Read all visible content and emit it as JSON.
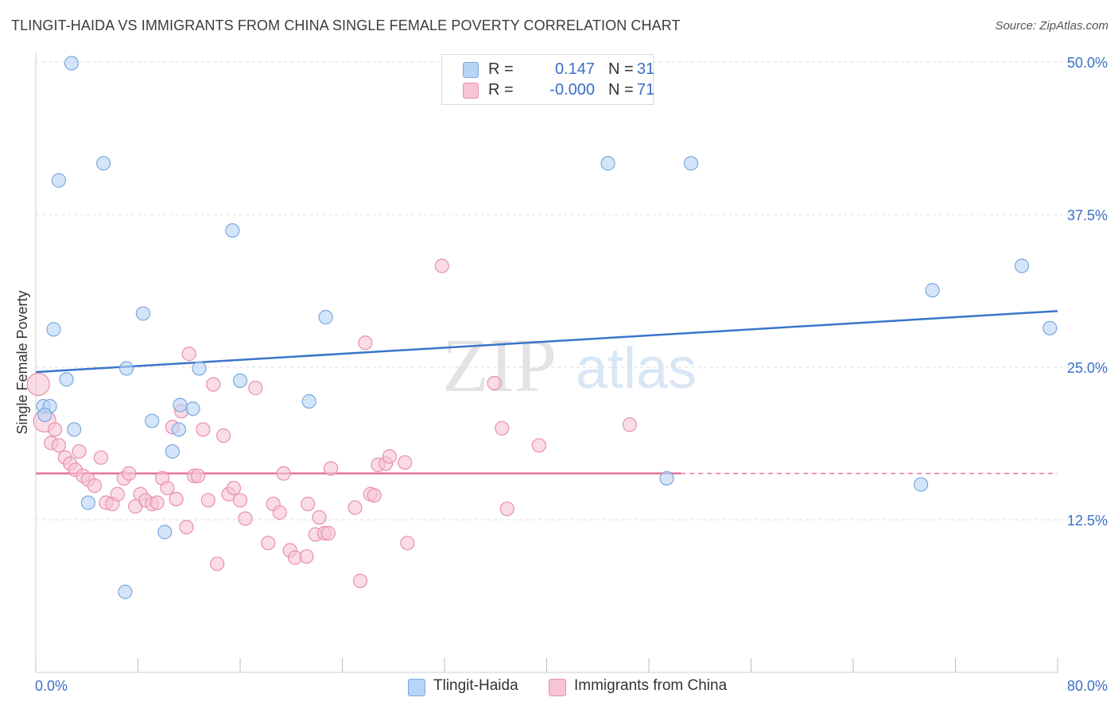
{
  "title": "TLINGIT-HAIDA VS IMMIGRANTS FROM CHINA SINGLE FEMALE POVERTY CORRELATION CHART",
  "source": "Source: ZipAtlas.com",
  "watermark": {
    "zip": "ZIP",
    "atlas": "atlas"
  },
  "legend": {
    "series1": {
      "r_label": "R =",
      "r_value": "0.147",
      "n_label": "N =",
      "n_value": "31"
    },
    "series2": {
      "r_label": "R =",
      "r_value": "-0.000",
      "n_label": "N =",
      "n_value": "71"
    }
  },
  "bottom_legend": {
    "series1": "Tlingit-Haida",
    "series2": "Immigrants from China"
  },
  "chart_data": {
    "type": "scatter",
    "title": "TLINGIT-HAIDA VS IMMIGRANTS FROM CHINA SINGLE FEMALE POVERTY CORRELATION CHART",
    "xlabel": "",
    "ylabel": "Single Female Poverty",
    "xlim": [
      0,
      80
    ],
    "ylim": [
      0,
      50
    ],
    "x_tick_labels": [
      "0.0%",
      "80.0%"
    ],
    "y_ticks": [
      12.5,
      25.0,
      37.5,
      50.0
    ],
    "y_tick_labels": [
      "12.5%",
      "25.0%",
      "37.5%",
      "50.0%"
    ],
    "grid": true,
    "colors": {
      "series1_fill": "#b7d3f5",
      "series1_stroke": "#7aa8e0",
      "series1_line": "#3a75c9",
      "series2_fill": "#f7c4d4",
      "series2_stroke": "#e88fae",
      "series2_line": "#e8739b",
      "axis_text": "#3a6fc4"
    },
    "series": [
      {
        "name": "Tlingit-Haida",
        "trend": {
          "x": [
            0,
            80
          ],
          "y": [
            24.6,
            29.6
          ]
        },
        "points": [
          [
            2.8,
            49.9
          ],
          [
            1.8,
            40.3
          ],
          [
            5.3,
            41.7
          ],
          [
            44.8,
            41.7
          ],
          [
            51.3,
            41.7
          ],
          [
            15.4,
            36.2
          ],
          [
            1.4,
            28.1
          ],
          [
            8.4,
            29.4
          ],
          [
            22.7,
            29.1
          ],
          [
            70.2,
            31.3
          ],
          [
            77.2,
            33.3
          ],
          [
            79.4,
            28.2
          ],
          [
            7.1,
            24.9
          ],
          [
            12.8,
            24.9
          ],
          [
            2.4,
            24.0
          ],
          [
            16.0,
            23.9
          ],
          [
            0.6,
            21.8
          ],
          [
            1.1,
            21.8
          ],
          [
            11.3,
            21.9
          ],
          [
            12.3,
            21.6
          ],
          [
            21.4,
            22.2
          ],
          [
            0.7,
            21.1
          ],
          [
            3.0,
            19.9
          ],
          [
            9.1,
            20.6
          ],
          [
            11.2,
            19.9
          ],
          [
            10.7,
            18.1
          ],
          [
            4.1,
            13.9
          ],
          [
            10.1,
            11.5
          ],
          [
            7.0,
            6.6
          ],
          [
            49.4,
            15.9
          ],
          [
            69.3,
            15.4
          ]
        ]
      },
      {
        "name": "Immigrants from China",
        "trend": {
          "x": [
            0,
            80
          ],
          "y": [
            16.3,
            16.3
          ],
          "solid_until": 50.5
        },
        "points": [
          [
            0.2,
            23.6
          ],
          [
            0.7,
            20.6
          ],
          [
            1.2,
            18.8
          ],
          [
            1.5,
            19.9
          ],
          [
            1.8,
            18.6
          ],
          [
            2.3,
            17.6
          ],
          [
            2.7,
            17.1
          ],
          [
            3.1,
            16.6
          ],
          [
            3.4,
            18.1
          ],
          [
            3.7,
            16.1
          ],
          [
            4.1,
            15.8
          ],
          [
            4.6,
            15.3
          ],
          [
            5.1,
            17.6
          ],
          [
            5.5,
            13.9
          ],
          [
            6.0,
            13.8
          ],
          [
            6.4,
            14.6
          ],
          [
            6.9,
            15.9
          ],
          [
            7.3,
            16.3
          ],
          [
            7.8,
            13.6
          ],
          [
            8.2,
            14.6
          ],
          [
            8.6,
            14.1
          ],
          [
            9.1,
            13.8
          ],
          [
            9.5,
            13.9
          ],
          [
            9.9,
            15.9
          ],
          [
            10.3,
            15.1
          ],
          [
            10.7,
            20.1
          ],
          [
            11.0,
            14.2
          ],
          [
            11.4,
            21.4
          ],
          [
            11.8,
            11.9
          ],
          [
            12.0,
            26.1
          ],
          [
            12.4,
            16.1
          ],
          [
            12.7,
            16.1
          ],
          [
            13.1,
            19.9
          ],
          [
            13.5,
            14.1
          ],
          [
            13.9,
            23.6
          ],
          [
            14.2,
            8.9
          ],
          [
            14.7,
            19.4
          ],
          [
            15.1,
            14.6
          ],
          [
            15.5,
            15.1
          ],
          [
            16.0,
            14.1
          ],
          [
            16.4,
            12.6
          ],
          [
            17.2,
            23.3
          ],
          [
            18.2,
            10.6
          ],
          [
            18.6,
            13.8
          ],
          [
            19.1,
            13.1
          ],
          [
            19.4,
            16.3
          ],
          [
            19.9,
            10.0
          ],
          [
            20.3,
            9.4
          ],
          [
            21.2,
            9.5
          ],
          [
            21.9,
            11.3
          ],
          [
            22.2,
            12.7
          ],
          [
            22.6,
            11.4
          ],
          [
            22.9,
            11.4
          ],
          [
            23.1,
            16.7
          ],
          [
            25.0,
            13.5
          ],
          [
            25.4,
            7.5
          ],
          [
            26.2,
            14.6
          ],
          [
            26.5,
            14.5
          ],
          [
            26.8,
            17.0
          ],
          [
            27.4,
            17.1
          ],
          [
            27.7,
            17.7
          ],
          [
            28.9,
            17.2
          ],
          [
            29.1,
            10.6
          ],
          [
            31.8,
            33.3
          ],
          [
            35.9,
            23.7
          ],
          [
            36.5,
            20.0
          ],
          [
            36.9,
            13.4
          ],
          [
            39.4,
            18.6
          ],
          [
            46.5,
            20.3
          ],
          [
            25.8,
            27.0
          ],
          [
            21.3,
            13.8
          ]
        ]
      }
    ]
  }
}
